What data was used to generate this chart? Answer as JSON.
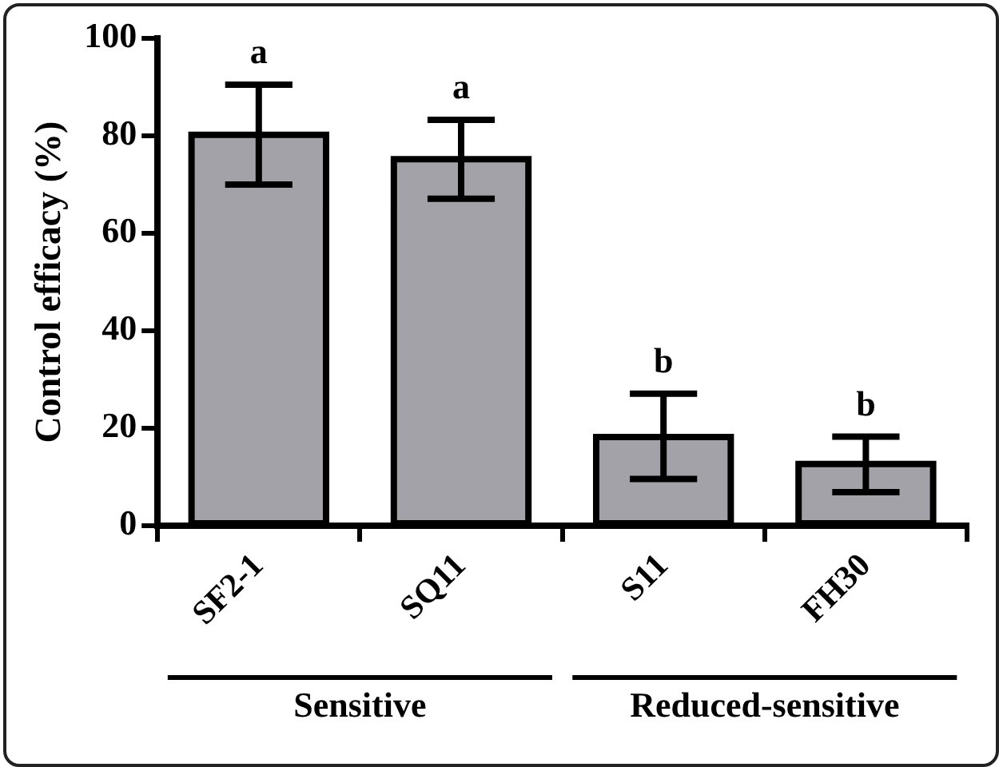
{
  "chart_data": {
    "type": "bar",
    "ylabel": "Control efficacy (%)",
    "categories": [
      "SF2-1",
      "SQ11",
      "S11",
      "FH30"
    ],
    "values": [
      80.2,
      75.2,
      18.2,
      12.7
    ],
    "errors": [
      [
        70.0,
        90.5
      ],
      [
        67.1,
        83.3
      ],
      [
        9.6,
        27.1
      ],
      [
        6.9,
        18.3
      ]
    ],
    "color": "#a3a2a8",
    "ylim": [
      0,
      100
    ],
    "yticks": [
      0,
      20,
      40,
      60,
      80,
      100
    ],
    "grid": false,
    "legend": false,
    "annotations": [
      {
        "text": "a",
        "x": "SF2-1",
        "y": 90.5
      },
      {
        "text": "a",
        "x": "SQ11",
        "y": 83.3
      },
      {
        "text": "b",
        "x": "S11",
        "y": 27.1
      },
      {
        "text": "b",
        "x": "FH30",
        "y": 18.3
      },
      "Sensitive",
      "Reduced-sensitive"
    ]
  }
}
